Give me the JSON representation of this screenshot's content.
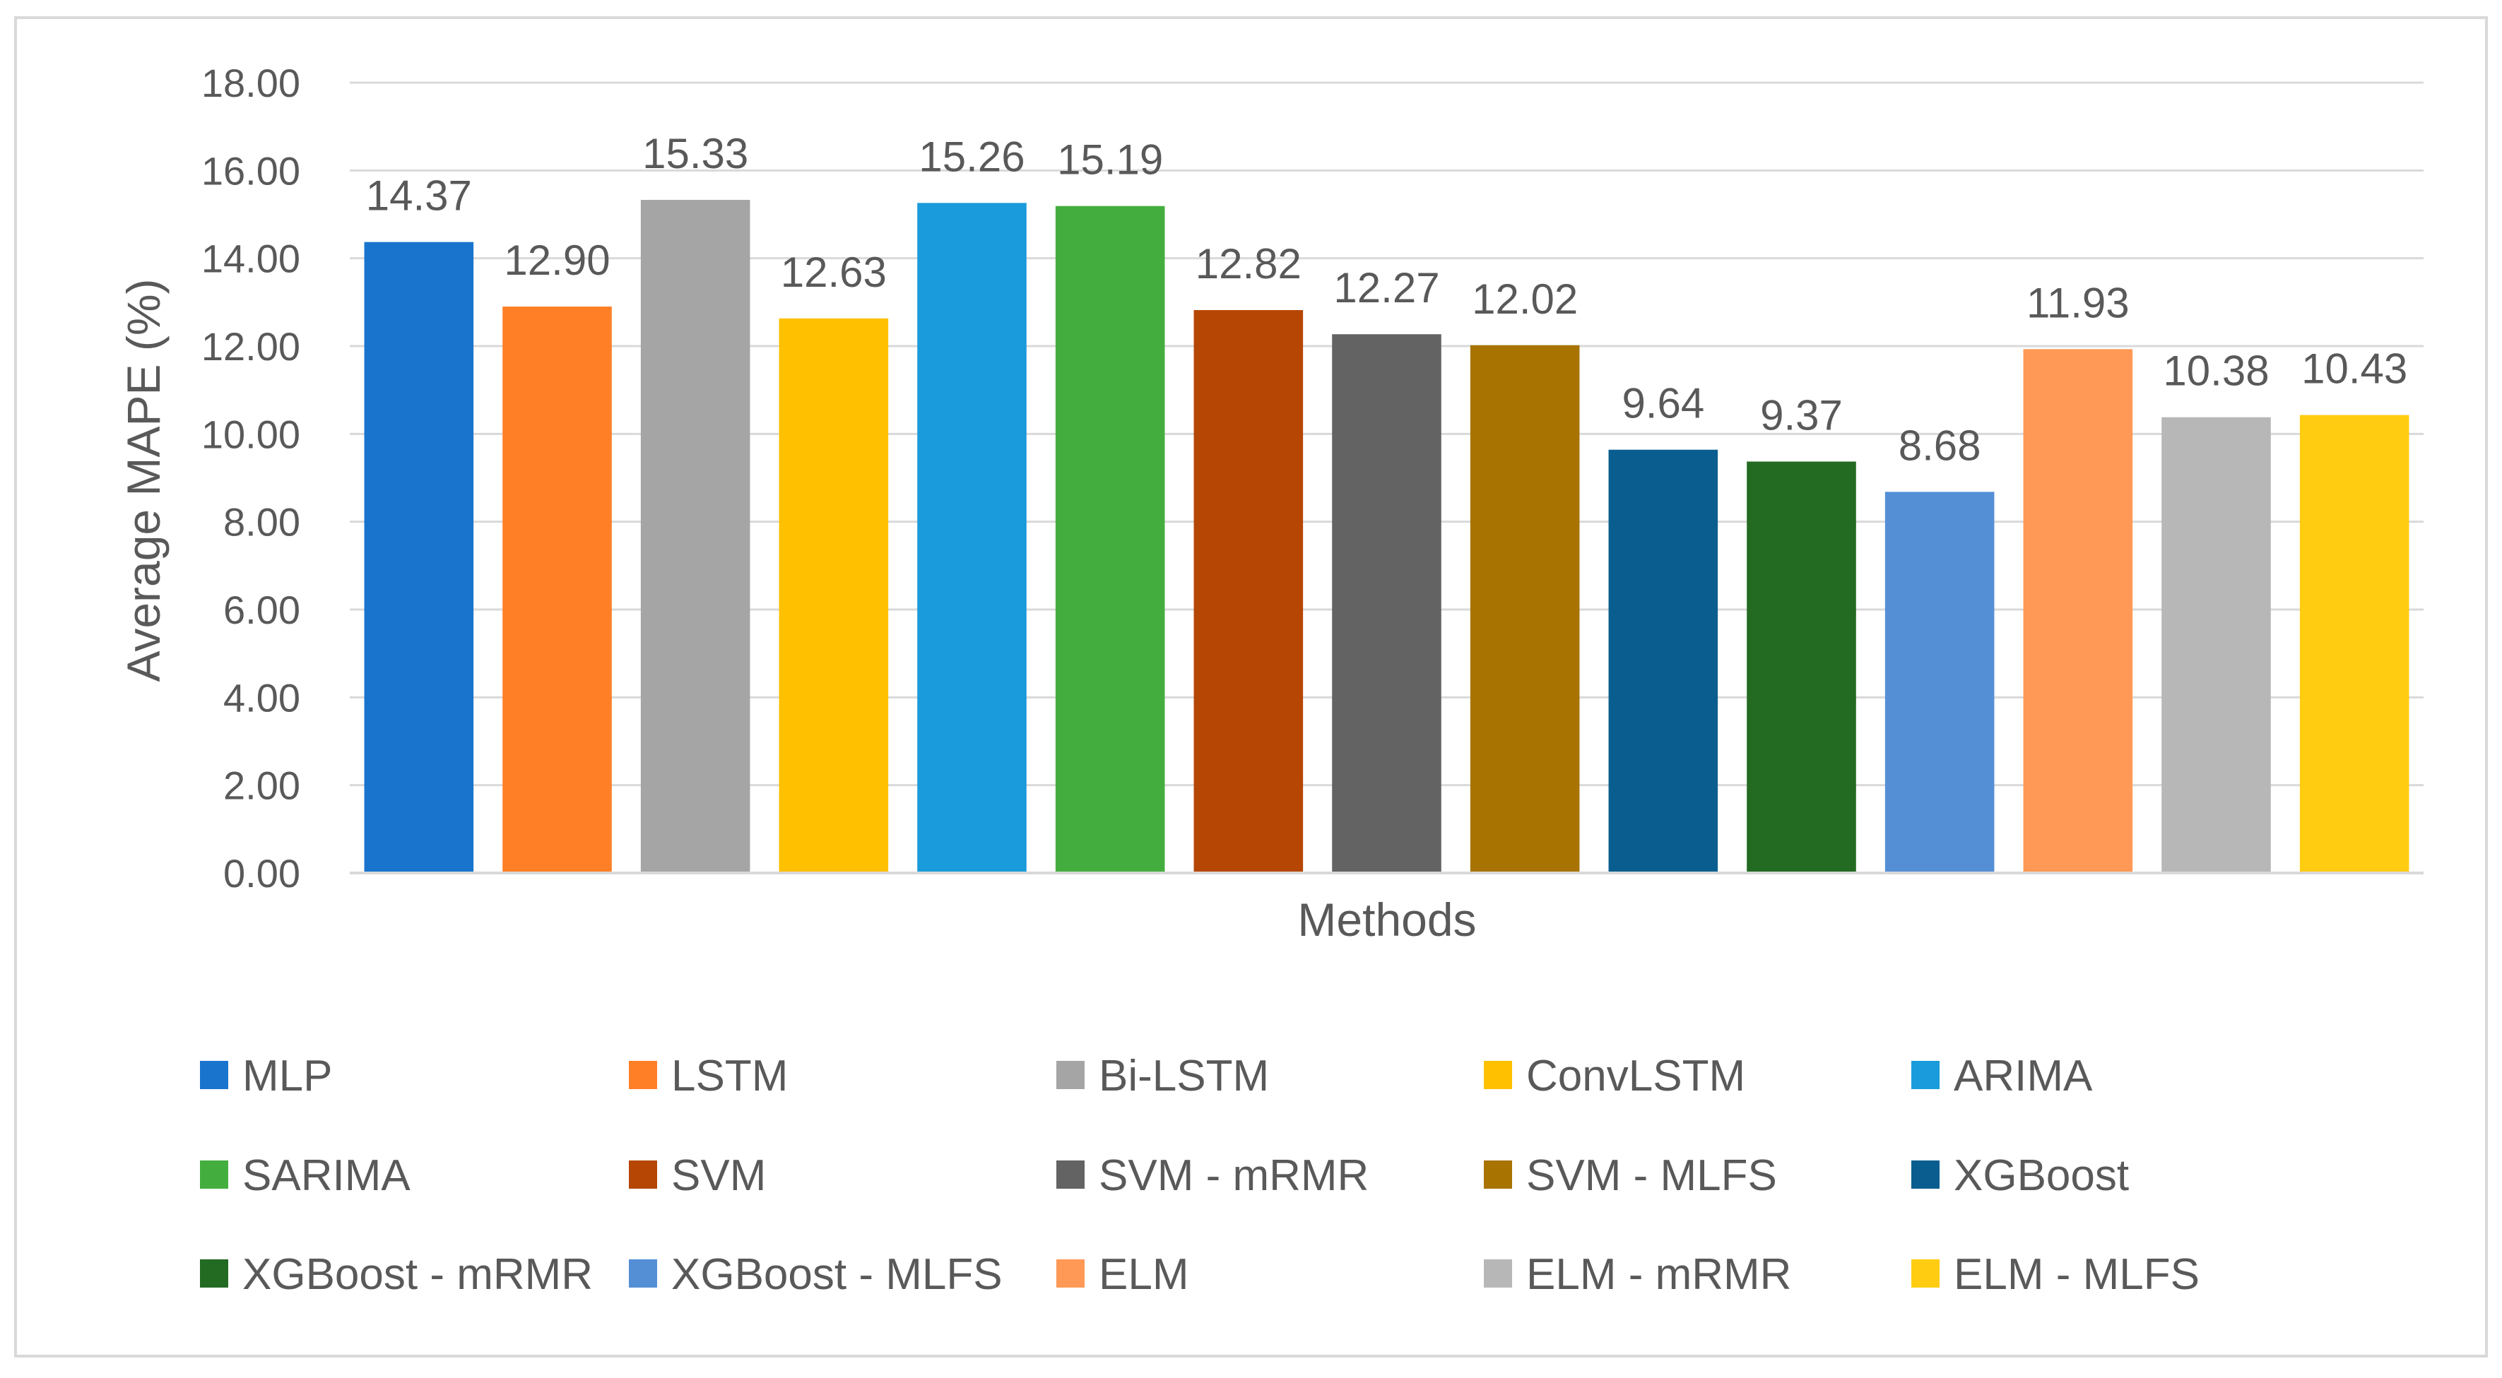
{
  "chart_data": {
    "type": "bar",
    "title": "",
    "xlabel": "Methods",
    "ylabel": "Average MAPE (%)",
    "ylim": [
      0,
      18
    ],
    "y_ticks": [
      "0.00",
      "2.00",
      "4.00",
      "6.00",
      "8.00",
      "10.00",
      "12.00",
      "14.00",
      "16.00",
      "18.00"
    ],
    "grid": true,
    "legend_position": "bottom",
    "categories": [
      "MLP",
      "LSTM",
      "Bi-LSTM",
      "ConvLSTM",
      "ARIMA",
      "SARIMA",
      "SVM",
      "SVM - mRMR",
      "SVM - MLFS",
      "XGBoost",
      "XGBoost - mRMR",
      "XGBoost - MLFS",
      "ELM",
      "ELM - mRMR",
      "ELM - MLFS"
    ],
    "values": [
      14.37,
      12.9,
      15.33,
      12.63,
      15.26,
      15.19,
      12.82,
      12.27,
      12.02,
      9.64,
      9.37,
      8.68,
      11.93,
      10.38,
      10.43
    ],
    "value_labels": [
      "14.37",
      "12.90",
      "15.33",
      "12.63",
      "15.26",
      "15.19",
      "12.82",
      "12.27",
      "12.02",
      "9.64",
      "9.37",
      "8.68",
      "11.93",
      "10.38",
      "10.43"
    ],
    "colors": [
      "#1874CD",
      "#FF7F27",
      "#A5A5A5",
      "#FFC000",
      "#1A9BDB",
      "#43AE3E",
      "#B54603",
      "#636363",
      "#A87300",
      "#0A5E8F",
      "#236A23",
      "#548FD6",
      "#FF9955",
      "#B7B7B7",
      "#FFCC11"
    ]
  }
}
